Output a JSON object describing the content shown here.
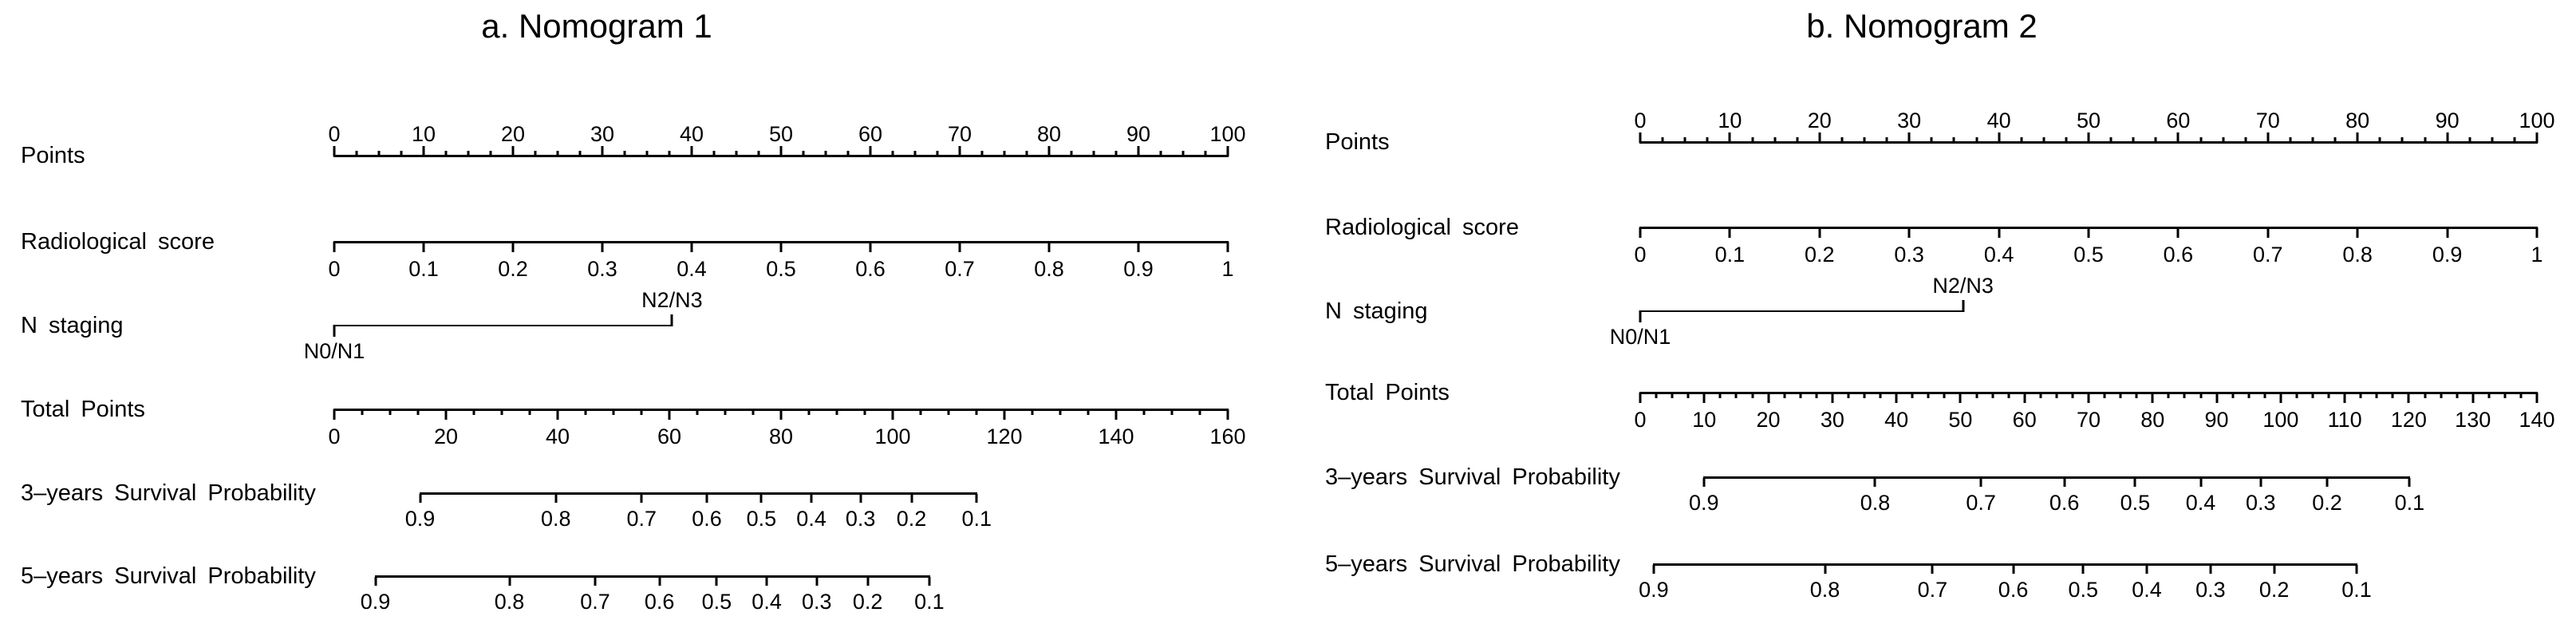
{
  "figure": {
    "background_color": "#ffffff",
    "line_color": "#000000"
  },
  "panels": [
    {
      "name": "nomogram-1",
      "title": "a. Nomogram 1",
      "rows": [
        {
          "name": "points",
          "kind": "ruler",
          "label": "Points",
          "side": "up",
          "minor_divisions": 4,
          "tick_labels": [
            "0",
            "10",
            "20",
            "30",
            "40",
            "50",
            "60",
            "70",
            "80",
            "90",
            "100"
          ]
        },
        {
          "name": "radiological-score",
          "kind": "ruler",
          "label": "Radiological score",
          "side": "down",
          "minor_divisions": 1,
          "tick_labels": [
            "0",
            "0.1",
            "0.2",
            "0.3",
            "0.4",
            "0.5",
            "0.6",
            "0.7",
            "0.8",
            "0.9",
            "1"
          ]
        },
        {
          "name": "n-staging",
          "kind": "factor",
          "label": "N staging",
          "low_label": "N0/N1",
          "high_label": "N2/N3",
          "high_f": 0.378
        },
        {
          "name": "total-points",
          "kind": "ruler",
          "label": "Total Points",
          "side": "down",
          "minor_divisions": 4,
          "tick_labels": [
            "0",
            "20",
            "40",
            "60",
            "80",
            "100",
            "120",
            "140",
            "160"
          ]
        },
        {
          "name": "survival-3yr",
          "kind": "prob",
          "label": "3–years Survival Probability",
          "ticks": [
            {
              "label": "0.9",
              "f": 0.096
            },
            {
              "label": "0.8",
              "f": 0.248
            },
            {
              "label": "0.7",
              "f": 0.344
            },
            {
              "label": "0.6",
              "f": 0.417
            },
            {
              "label": "0.5",
              "f": 0.478
            },
            {
              "label": "0.4",
              "f": 0.534
            },
            {
              "label": "0.3",
              "f": 0.589
            },
            {
              "label": "0.2",
              "f": 0.646
            },
            {
              "label": "0.1",
              "f": 0.719
            }
          ]
        },
        {
          "name": "survival-5yr",
          "kind": "prob",
          "label": "5–years Survival Probability",
          "ticks": [
            {
              "label": "0.9",
              "f": 0.046
            },
            {
              "label": "0.8",
              "f": 0.196
            },
            {
              "label": "0.7",
              "f": 0.292
            },
            {
              "label": "0.6",
              "f": 0.364
            },
            {
              "label": "0.5",
              "f": 0.428
            },
            {
              "label": "0.4",
              "f": 0.484
            },
            {
              "label": "0.3",
              "f": 0.54
            },
            {
              "label": "0.2",
              "f": 0.597
            },
            {
              "label": "0.1",
              "f": 0.666
            }
          ]
        }
      ]
    },
    {
      "name": "nomogram-2",
      "title": "b. Nomogram 2",
      "rows": [
        {
          "name": "points",
          "kind": "ruler",
          "label": "Points",
          "side": "up",
          "minor_divisions": 4,
          "tick_labels": [
            "0",
            "10",
            "20",
            "30",
            "40",
            "50",
            "60",
            "70",
            "80",
            "90",
            "100"
          ]
        },
        {
          "name": "radiological-score",
          "kind": "ruler",
          "label": "Radiological score",
          "side": "down",
          "minor_divisions": 1,
          "tick_labels": [
            "0",
            "0.1",
            "0.2",
            "0.3",
            "0.4",
            "0.5",
            "0.6",
            "0.7",
            "0.8",
            "0.9",
            "1"
          ]
        },
        {
          "name": "n-staging",
          "kind": "factor",
          "label": "N staging",
          "low_label": "N0/N1",
          "high_label": "N2/N3",
          "high_f": 0.36
        },
        {
          "name": "total-points",
          "kind": "ruler",
          "label": "Total Points",
          "side": "down",
          "minor_divisions": 4,
          "tick_labels": [
            "0",
            "10",
            "20",
            "30",
            "40",
            "50",
            "60",
            "70",
            "80",
            "90",
            "100",
            "110",
            "120",
            "130",
            "140"
          ]
        },
        {
          "name": "survival-3yr",
          "kind": "prob",
          "label": "3–years Survival Probability",
          "ticks": [
            {
              "label": "0.9",
              "f": 0.071
            },
            {
              "label": "0.8",
              "f": 0.262
            },
            {
              "label": "0.7",
              "f": 0.38
            },
            {
              "label": "0.6",
              "f": 0.473
            },
            {
              "label": "0.5",
              "f": 0.552
            },
            {
              "label": "0.4",
              "f": 0.625
            },
            {
              "label": "0.3",
              "f": 0.692
            },
            {
              "label": "0.2",
              "f": 0.766
            },
            {
              "label": "0.1",
              "f": 0.858
            }
          ]
        },
        {
          "name": "survival-5yr",
          "kind": "prob",
          "label": "5–years Survival Probability",
          "ticks": [
            {
              "label": "0.9",
              "f": 0.015
            },
            {
              "label": "0.8",
              "f": 0.206
            },
            {
              "label": "0.7",
              "f": 0.326
            },
            {
              "label": "0.6",
              "f": 0.416
            },
            {
              "label": "0.5",
              "f": 0.494
            },
            {
              "label": "0.4",
              "f": 0.565
            },
            {
              "label": "0.3",
              "f": 0.636
            },
            {
              "label": "0.2",
              "f": 0.707
            },
            {
              "label": "0.1",
              "f": 0.799
            }
          ]
        }
      ]
    }
  ],
  "chart_data": [
    {
      "type": "nomogram",
      "title": "a. Nomogram 1",
      "points_axis": {
        "min": 0,
        "max": 100,
        "label_step": 10,
        "minor_step": 2.5
      },
      "predictors": [
        {
          "name": "Radiological score",
          "scale_min": 0,
          "scale_max": 1,
          "label_step": 0.1,
          "points_at_min": 0,
          "points_at_max": 100
        },
        {
          "name": "N staging",
          "levels": [
            {
              "label": "N0/N1",
              "points": 0
            },
            {
              "label": "N2/N3",
              "points": 37.8
            }
          ]
        }
      ],
      "total_points_axis": {
        "min": 0,
        "max": 160,
        "label_step": 20,
        "minor_step": 5
      },
      "outcomes": [
        {
          "name": "3–years Survival Probability",
          "probabilities": [
            0.9,
            0.8,
            0.7,
            0.6,
            0.5,
            0.4,
            0.3,
            0.2,
            0.1
          ],
          "total_points": [
            15.3,
            39.7,
            55.0,
            66.7,
            76.4,
            85.4,
            94.3,
            103.4,
            115.1
          ]
        },
        {
          "name": "5–years Survival Probability",
          "probabilities": [
            0.9,
            0.8,
            0.7,
            0.6,
            0.5,
            0.4,
            0.3,
            0.2,
            0.1
          ],
          "total_points": [
            7.3,
            31.3,
            46.7,
            58.3,
            68.5,
            77.4,
            86.4,
            95.6,
            106.6
          ]
        }
      ]
    },
    {
      "type": "nomogram",
      "title": "b. Nomogram 2",
      "points_axis": {
        "min": 0,
        "max": 100,
        "label_step": 10,
        "minor_step": 2.5
      },
      "predictors": [
        {
          "name": "Radiological score",
          "scale_min": 0,
          "scale_max": 1,
          "label_step": 0.1,
          "points_at_min": 0,
          "points_at_max": 100
        },
        {
          "name": "N staging",
          "levels": [
            {
              "label": "N0/N1",
              "points": 0
            },
            {
              "label": "N2/N3",
              "points": 35.9
            }
          ]
        }
      ],
      "total_points_axis": {
        "min": 0,
        "max": 140,
        "label_step": 10,
        "minor_step": 2.5
      },
      "outcomes": [
        {
          "name": "3–years Survival Probability",
          "probabilities": [
            0.9,
            0.8,
            0.7,
            0.6,
            0.5,
            0.4,
            0.3,
            0.2,
            0.1
          ],
          "total_points": [
            10.0,
            36.6,
            53.2,
            66.2,
            77.3,
            87.4,
            96.9,
            107.2,
            120.1
          ]
        },
        {
          "name": "5–years Survival Probability",
          "probabilities": [
            0.9,
            0.8,
            0.7,
            0.6,
            0.5,
            0.4,
            0.3,
            0.2,
            0.1
          ],
          "total_points": [
            2.1,
            28.9,
            45.6,
            58.2,
            69.1,
            79.1,
            89.0,
            99.0,
            111.8
          ]
        }
      ]
    }
  ]
}
